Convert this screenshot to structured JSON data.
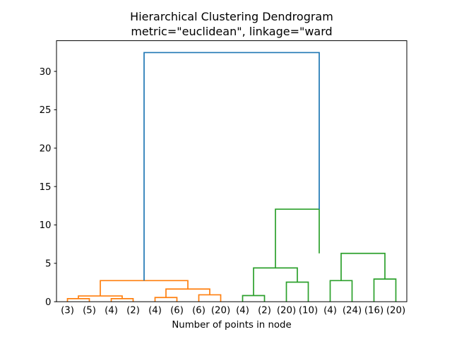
{
  "figure": {
    "background": "#ffffff"
  },
  "chart_data": {
    "type": "dendrogram",
    "title": "Hierarchical Clustering Dendrogram",
    "subtitle": "metric=\"euclidean\", linkage=\"ward",
    "xlabel": "Number of points in node",
    "ylabel": "",
    "grid": false,
    "legend": null,
    "xlim": [
      0,
      160
    ],
    "ylim": [
      0,
      34
    ],
    "yticks": [
      0,
      5,
      10,
      15,
      20,
      25,
      30
    ],
    "leaf_labels": [
      "(3)",
      "(5)",
      "(4)",
      "(2)",
      "(4)",
      "(6)",
      "(6)",
      "(20)",
      "(4)",
      "(2)",
      "(20)",
      "(10)",
      "(4)",
      "(24)",
      "(16)",
      "(20)"
    ],
    "leaf_counts": [
      3,
      5,
      4,
      2,
      4,
      6,
      6,
      20,
      4,
      2,
      20,
      10,
      4,
      24,
      16,
      20
    ],
    "leaf_x": [
      5,
      15,
      25,
      35,
      45,
      55,
      65,
      75,
      85,
      95,
      105,
      115,
      125,
      135,
      145,
      155
    ],
    "colors": {
      "root": "#1f77b4",
      "cluster_left": "#ff7f0e",
      "cluster_right": "#2ca02c",
      "axis": "#000000",
      "text": "#000000"
    },
    "line_width": 1.7,
    "links": [
      {
        "x1": 5,
        "h1": 0,
        "x2": 15,
        "h2": 0,
        "y": 0.4,
        "color": "cluster_left"
      },
      {
        "x1": 25,
        "h1": 0,
        "x2": 35,
        "h2": 0,
        "y": 0.4,
        "color": "cluster_left"
      },
      {
        "x1": 10,
        "h1": 0.4,
        "x2": 30,
        "h2": 0.4,
        "y": 0.75,
        "color": "cluster_left"
      },
      {
        "x1": 45,
        "h1": 0,
        "x2": 55,
        "h2": 0,
        "y": 0.55,
        "color": "cluster_left"
      },
      {
        "x1": 65,
        "h1": 0,
        "x2": 75,
        "h2": 0,
        "y": 0.9,
        "color": "cluster_left"
      },
      {
        "x1": 50,
        "h1": 0.55,
        "x2": 70,
        "h2": 0.9,
        "y": 1.65,
        "color": "cluster_left"
      },
      {
        "x1": 20,
        "h1": 0.75,
        "x2": 60,
        "h2": 1.65,
        "y": 2.75,
        "color": "cluster_left"
      },
      {
        "x1": 85,
        "h1": 0,
        "x2": 95,
        "h2": 0,
        "y": 0.8,
        "color": "cluster_right"
      },
      {
        "x1": 105,
        "h1": 0,
        "x2": 115,
        "h2": 0,
        "y": 2.55,
        "color": "cluster_right"
      },
      {
        "x1": 90,
        "h1": 0.8,
        "x2": 110,
        "h2": 2.55,
        "y": 4.4,
        "color": "cluster_right"
      },
      {
        "x1": 125,
        "h1": 0,
        "x2": 135,
        "h2": 0,
        "y": 2.75,
        "color": "cluster_right"
      },
      {
        "x1": 145,
        "h1": 0,
        "x2": 155,
        "h2": 0,
        "y": 2.95,
        "color": "cluster_right"
      },
      {
        "x1": 130,
        "h1": 2.75,
        "x2": 150,
        "h2": 2.95,
        "y": 6.3,
        "color": "cluster_right"
      },
      {
        "x1": 100,
        "h1": 4.4,
        "x2": 120,
        "h2": 6.3,
        "y": 12.05,
        "color": "cluster_right"
      },
      {
        "x1": 40,
        "h1": 2.75,
        "x2": 120,
        "h2": 12.05,
        "y": 32.45,
        "color": "root"
      }
    ]
  }
}
